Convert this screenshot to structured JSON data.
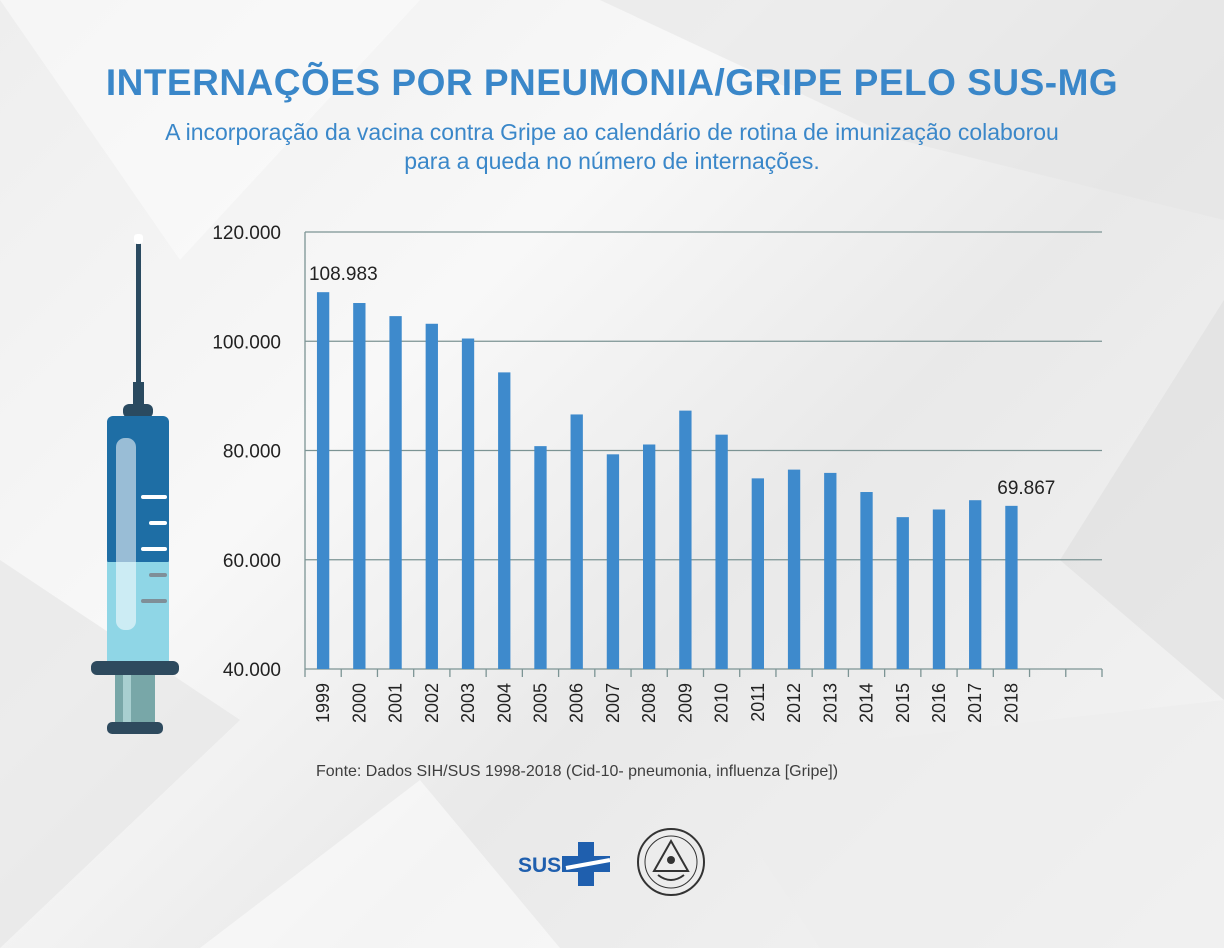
{
  "header": {
    "title": "INTERNAÇÕES POR PNEUMONIA/GRIPE PELO SUS-MG",
    "subtitle_line1": "A incorporação da vacina contra Gripe ao calendário de rotina de imunização colaborou",
    "subtitle_line2": "para a queda no número de internações."
  },
  "chart_data": {
    "type": "bar",
    "title": "INTERNAÇÕES POR PNEUMONIA/GRIPE PELO SUS-MG",
    "xlabel": "",
    "ylabel": "",
    "categories": [
      "1999",
      "2000",
      "2001",
      "2002",
      "2003",
      "2004",
      "2005",
      "2006",
      "2007",
      "2008",
      "2009",
      "2010",
      "2011",
      "2012",
      "2013",
      "2014",
      "2015",
      "2016",
      "2017",
      "2018"
    ],
    "values": [
      108983,
      107000,
      104600,
      103200,
      100500,
      94300,
      80800,
      86600,
      79300,
      81100,
      87300,
      82900,
      74900,
      76500,
      75900,
      72400,
      67800,
      69200,
      70900,
      69867
    ],
    "ylim": [
      40000,
      120000
    ],
    "yticks": [
      40000,
      60000,
      80000,
      100000,
      120000
    ],
    "ytick_labels": [
      "40.000",
      "60.000",
      "80.000",
      "100.000",
      "120.000"
    ],
    "data_labels": [
      {
        "category": "1999",
        "text": "108.983"
      },
      {
        "category": "2018",
        "text": "69.867"
      }
    ],
    "grid": true,
    "bar_color": "#3e8acc"
  },
  "footer": {
    "source": "Fonte: Dados SIH/SUS 1998-2018 (Cid-10- pneumonia, influenza [Gripe])",
    "sus_logo_text": "SUS"
  },
  "icons": [
    "syringe-icon",
    "sus-logo",
    "state-seal-icon"
  ],
  "colors": {
    "accent": "#3a87c9",
    "bar": "#3e8acc",
    "grid": "#7c9494",
    "syringe_dark": "#1e6ea5",
    "syringe_light": "#8fd6e6",
    "syringe_base": "#2e4a5e"
  }
}
